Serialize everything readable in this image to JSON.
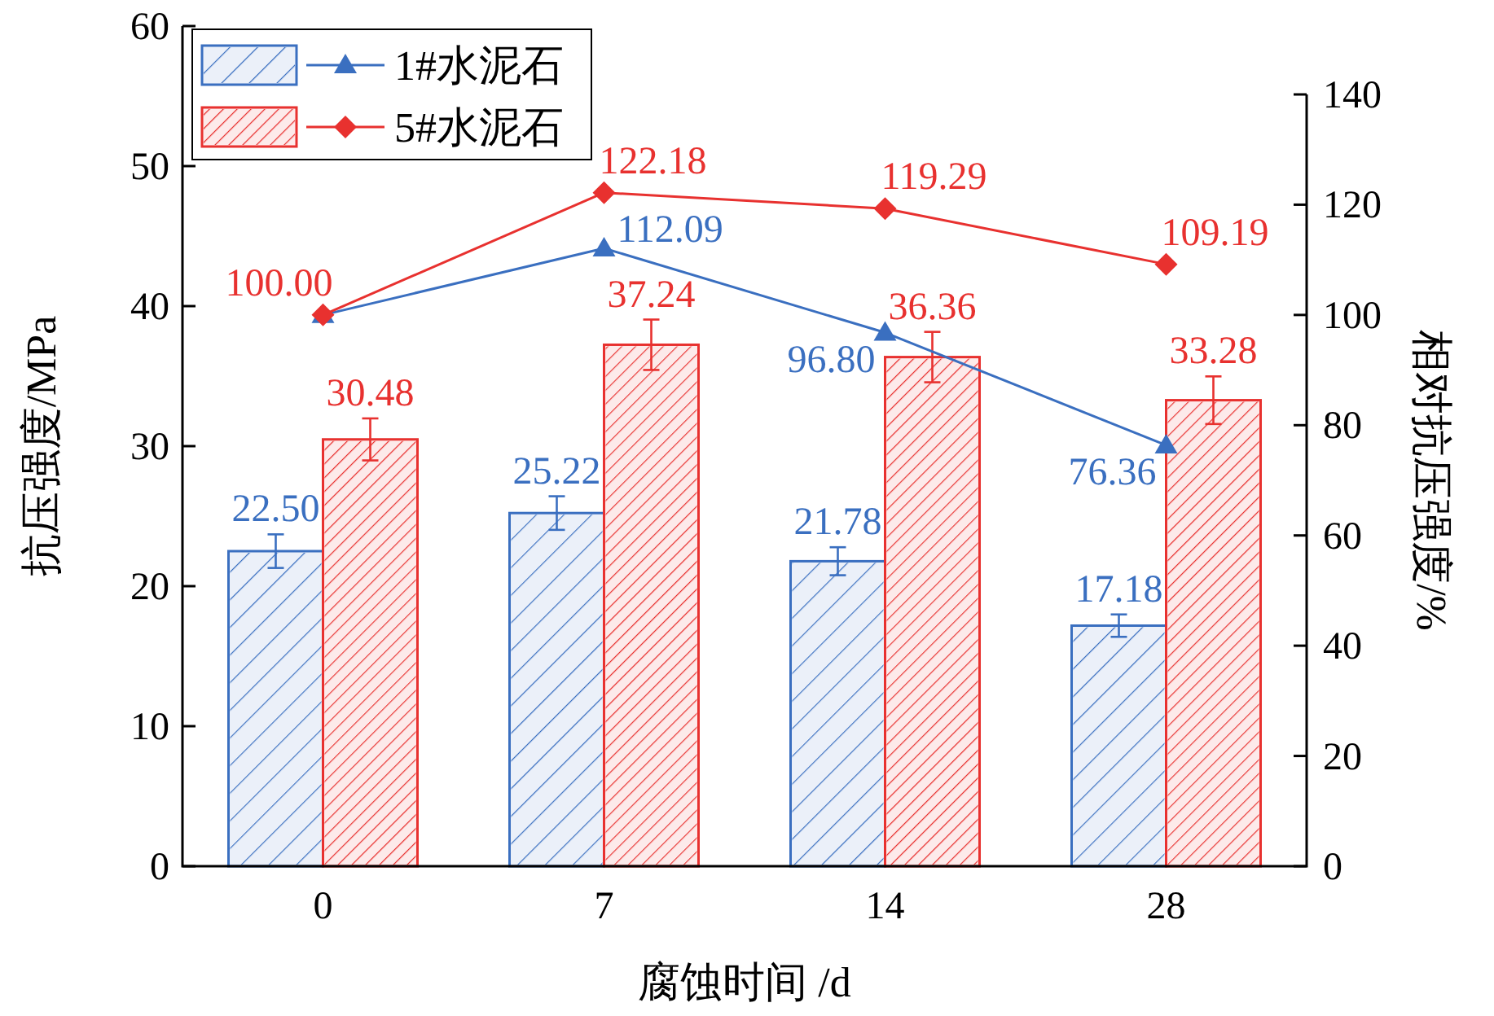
{
  "chart_data": {
    "type": "bar",
    "categories": [
      "0",
      "7",
      "14",
      "28"
    ],
    "xlabel": "腐蚀时间 /d",
    "ylabel": "抗压强度/MPa",
    "y2label": "相对抗压强度/%",
    "ylim": [
      0,
      60
    ],
    "yticks": [
      0,
      10,
      20,
      30,
      40,
      50,
      60
    ],
    "y2lim": [
      0,
      140
    ],
    "y2ticks": [
      0,
      20,
      40,
      60,
      80,
      100,
      120,
      140
    ],
    "legend": "top left",
    "series": [
      {
        "name": "1#水泥石",
        "color": "#3a6fc0",
        "values": [
          22.5,
          25.22,
          21.78,
          17.18
        ],
        "errors": [
          1.2,
          1.2,
          1.0,
          0.8
        ],
        "value_labels": [
          "22.50",
          "25.22",
          "21.78",
          "17.18"
        ]
      },
      {
        "name": "5#水泥石",
        "color": "#e8312f",
        "values": [
          30.48,
          37.24,
          36.36,
          33.28
        ],
        "errors": [
          1.5,
          1.8,
          1.8,
          1.7
        ],
        "value_labels": [
          "30.48",
          "37.24",
          "36.36",
          "33.28"
        ]
      },
      {
        "type": "line",
        "axis": "y2",
        "marker": "triangle",
        "color": "#3a6fc0",
        "values": [
          100.0,
          112.09,
          96.8,
          76.36
        ],
        "value_labels": [
          null,
          "112.09",
          "96.80",
          "76.36"
        ]
      },
      {
        "type": "line",
        "axis": "y2",
        "marker": "diamond",
        "color": "#e8312f",
        "values": [
          100.0,
          122.18,
          119.29,
          109.19
        ],
        "value_labels": [
          "100.00",
          "122.18",
          "119.29",
          "109.19"
        ]
      }
    ]
  }
}
